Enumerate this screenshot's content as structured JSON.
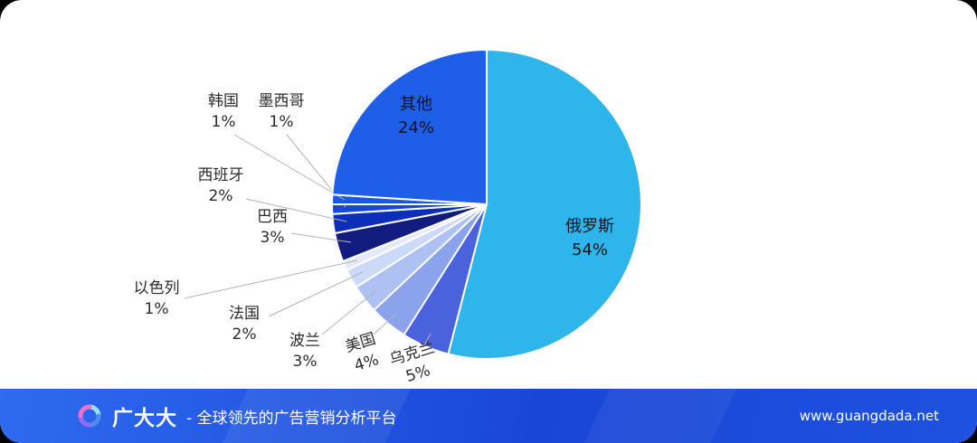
{
  "chart_data": {
    "type": "pie",
    "title": "",
    "unit": "%",
    "direction": "clockwise",
    "start_angle_deg": 0,
    "legend_position": "none",
    "slices": [
      {
        "name": "俄罗斯",
        "value": 54,
        "pct_label": "54%",
        "color": "#2EB5EC"
      },
      {
        "name": "乌克兰",
        "value": 5,
        "pct_label": "5%",
        "color": "#4A63DC"
      },
      {
        "name": "美国",
        "value": 4,
        "pct_label": "4%",
        "color": "#8AA3EC"
      },
      {
        "name": "波兰",
        "value": 3,
        "pct_label": "3%",
        "color": "#AEC1F3"
      },
      {
        "name": "法国",
        "value": 2,
        "pct_label": "2%",
        "color": "#CDD9F8"
      },
      {
        "name": "以色列",
        "value": 1,
        "pct_label": "1%",
        "color": "#E4EAFC"
      },
      {
        "name": "巴西",
        "value": 3,
        "pct_label": "3%",
        "color": "#121C7E"
      },
      {
        "name": "西班牙",
        "value": 2,
        "pct_label": "2%",
        "color": "#0D2EB8"
      },
      {
        "name": "墨西哥",
        "value": 1,
        "pct_label": "1%",
        "color": "#1747D6"
      },
      {
        "name": "韩国",
        "value": 1,
        "pct_label": "1%",
        "color": "#1C57E3"
      },
      {
        "name": "其他",
        "value": 24,
        "pct_label": "24%",
        "color": "#1E5EE8"
      }
    ]
  },
  "footer": {
    "brand": "广大大",
    "tagline": "- 全球领先的广告营销分析平台",
    "url": "www.guangdada.net",
    "background": "#1D4FD9"
  }
}
